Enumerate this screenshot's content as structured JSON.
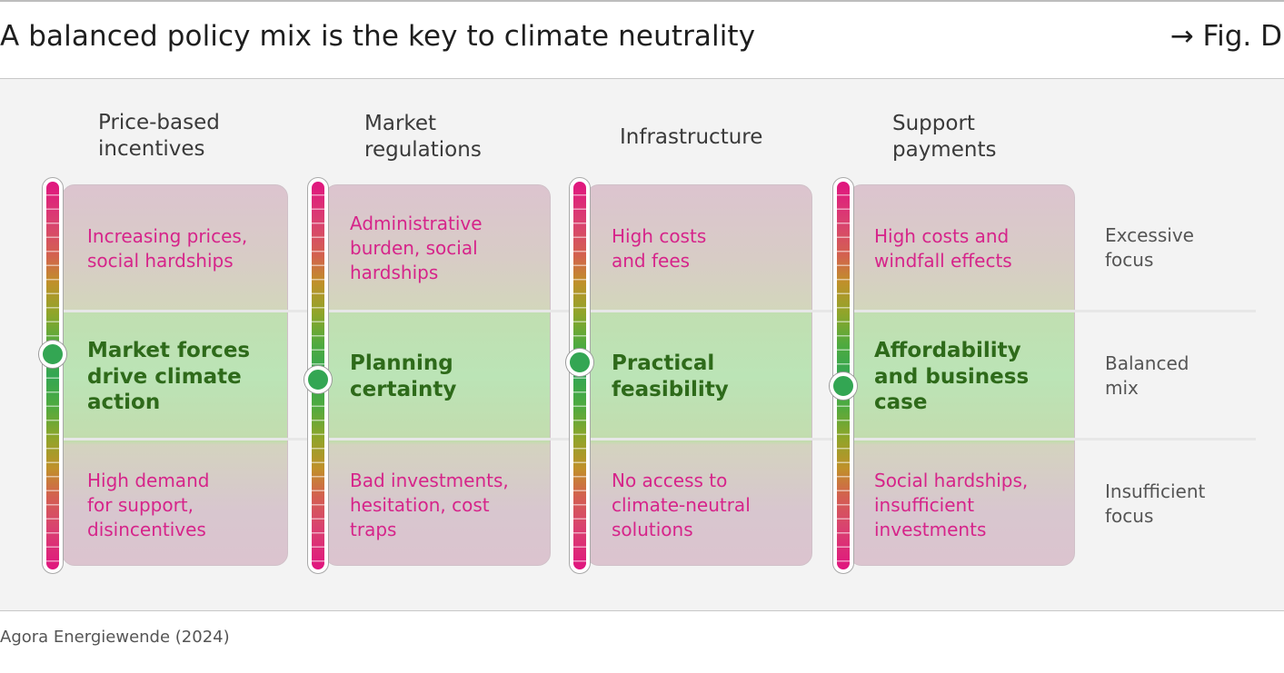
{
  "figure": {
    "title": "A balanced policy mix is the key to climate neutrality",
    "fig_ref": "→ Fig. D",
    "source": "Agora Energiewende (2024)"
  },
  "row_labels": [
    {
      "line1": "Excessive",
      "line2": "focus"
    },
    {
      "line1": "Balanced",
      "line2": "mix"
    },
    {
      "line1": "Insufficient",
      "line2": "focus"
    }
  ],
  "columns": [
    {
      "heading": [
        "Price-based",
        "incentives"
      ],
      "excessive": [
        "Increasing prices,",
        "social hardships"
      ],
      "balanced": [
        "Market forces",
        "drive climate",
        "action"
      ],
      "insufficient": [
        "High demand",
        "for support,",
        "disincentives"
      ]
    },
    {
      "heading": [
        "Market",
        "regulations"
      ],
      "excessive": [
        "Administrative",
        "burden, social",
        "hardships"
      ],
      "balanced": [
        "Planning",
        "certainty"
      ],
      "insufficient": [
        "Bad investments,",
        "hesitation, cost",
        "traps"
      ]
    },
    {
      "heading": [
        "Infrastructure"
      ],
      "excessive": [
        "High costs",
        "and fees"
      ],
      "balanced": [
        "Practical",
        "feasibility"
      ],
      "insufficient": [
        "No access to",
        "climate-neutral",
        "solutions"
      ]
    },
    {
      "heading": [
        "Support",
        "payments"
      ],
      "excessive": [
        "High costs and",
        "windfall effects"
      ],
      "balanced": [
        "Affordability",
        "and business",
        "case"
      ],
      "insufficient": [
        "Social hardships,",
        "insufficient",
        "investments"
      ]
    }
  ],
  "colors": {
    "excessive_text": "#d6248a",
    "balanced_text": "#2e6a1a",
    "marker": "#33a653"
  }
}
